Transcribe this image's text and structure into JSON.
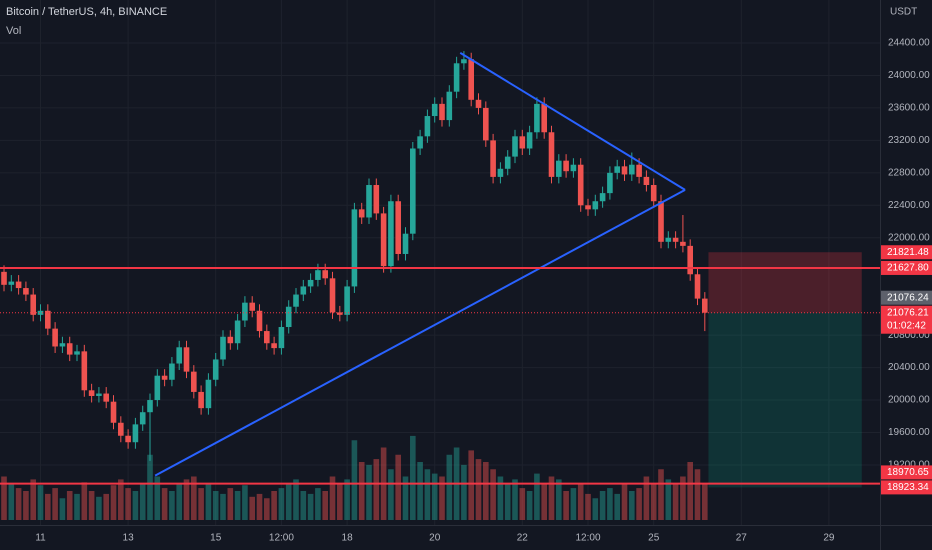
{
  "chart_data": {
    "type": "candlestick",
    "title": "Bitcoin / TetherUS, 4h, BINANCE",
    "volume_label": "Vol",
    "currency": "USDT",
    "up_color": "#26a69a",
    "down_color": "#ef5350",
    "grid": true,
    "xlim": [
      -0.55,
      120
    ],
    "ylim": [
      18460,
      24930
    ],
    "xticks": [
      {
        "value": 5,
        "label": "11"
      },
      {
        "value": 17,
        "label": "13"
      },
      {
        "value": 29,
        "label": "15"
      },
      {
        "value": 38,
        "label": "12:00"
      },
      {
        "value": 47,
        "label": "18"
      },
      {
        "value": 59,
        "label": "20"
      },
      {
        "value": 71,
        "label": "22"
      },
      {
        "value": 80,
        "label": "12:00"
      },
      {
        "value": 89,
        "label": "25"
      },
      {
        "value": 101,
        "label": "27"
      },
      {
        "value": 113,
        "label": "29"
      }
    ],
    "yticks": [
      {
        "value": 24400,
        "label": "24400.00"
      },
      {
        "value": 24000,
        "label": "24000.00"
      },
      {
        "value": 23600,
        "label": "23600.00"
      },
      {
        "value": 23200,
        "label": "23200.00"
      },
      {
        "value": 22800,
        "label": "22800.00"
      },
      {
        "value": 22400,
        "label": "22400.00"
      },
      {
        "value": 22000,
        "label": "22000.00"
      },
      {
        "value": 20800,
        "label": "20800.00"
      },
      {
        "value": 20400,
        "label": "20400.00"
      },
      {
        "value": 20000,
        "label": "20000.00"
      },
      {
        "value": 19600,
        "label": "19600.00"
      },
      {
        "value": 19200,
        "label": "19200.00"
      }
    ],
    "candles": [
      [
        21580,
        21660,
        21340,
        21420
      ],
      [
        21420,
        21540,
        21340,
        21460
      ],
      [
        21460,
        21540,
        21300,
        21380
      ],
      [
        21380,
        21460,
        21220,
        21300
      ],
      [
        21300,
        21380,
        20970,
        21050
      ],
      [
        21050,
        21180,
        20970,
        21100
      ],
      [
        21100,
        21180,
        20800,
        20880
      ],
      [
        20880,
        20960,
        20580,
        20660
      ],
      [
        20660,
        20780,
        20580,
        20700
      ],
      [
        20700,
        20780,
        20480,
        20560
      ],
      [
        20560,
        20680,
        20480,
        20600
      ],
      [
        20600,
        20680,
        20040,
        20120
      ],
      [
        20120,
        20200,
        19970,
        20050
      ],
      [
        20050,
        20160,
        19970,
        20080
      ],
      [
        20080,
        20160,
        19900,
        19980
      ],
      [
        19980,
        20060,
        19640,
        19720
      ],
      [
        19720,
        19800,
        19480,
        19560
      ],
      [
        19560,
        19640,
        19400,
        19480
      ],
      [
        19480,
        19780,
        19400,
        19700
      ],
      [
        19700,
        19930,
        19620,
        19850
      ],
      [
        19850,
        20080,
        19250,
        20000
      ],
      [
        20000,
        20380,
        19920,
        20300
      ],
      [
        20300,
        20380,
        20170,
        20250
      ],
      [
        20250,
        20530,
        20170,
        20450
      ],
      [
        20450,
        20730,
        20370,
        20650
      ],
      [
        20650,
        20730,
        20270,
        20350
      ],
      [
        20350,
        20430,
        20020,
        20100
      ],
      [
        20100,
        20180,
        19820,
        19900
      ],
      [
        19900,
        20330,
        19820,
        20250
      ],
      [
        20250,
        20580,
        20170,
        20500
      ],
      [
        20500,
        20860,
        20420,
        20780
      ],
      [
        20780,
        20860,
        20620,
        20700
      ],
      [
        20700,
        21060,
        20620,
        20980
      ],
      [
        20980,
        21280,
        20900,
        21200
      ],
      [
        21200,
        21280,
        21020,
        21100
      ],
      [
        21100,
        21180,
        20770,
        20850
      ],
      [
        20850,
        20930,
        20620,
        20700
      ],
      [
        20700,
        20780,
        20560,
        20640
      ],
      [
        20640,
        20980,
        20560,
        20900
      ],
      [
        20900,
        21230,
        20820,
        21150
      ],
      [
        21150,
        21380,
        21070,
        21300
      ],
      [
        21300,
        21480,
        21220,
        21400
      ],
      [
        21400,
        21560,
        21320,
        21480
      ],
      [
        21480,
        21680,
        21400,
        21600
      ],
      [
        21600,
        21680,
        21420,
        21500
      ],
      [
        21500,
        21580,
        21000,
        21080
      ],
      [
        21080,
        21160,
        20970,
        21050
      ],
      [
        21050,
        21480,
        20970,
        21400
      ],
      [
        21400,
        22430,
        21320,
        22350
      ],
      [
        22350,
        22430,
        22170,
        22250
      ],
      [
        22250,
        22730,
        22170,
        22650
      ],
      [
        22650,
        22730,
        22220,
        22300
      ],
      [
        22300,
        22380,
        21570,
        21650
      ],
      [
        21650,
        22530,
        21570,
        22450
      ],
      [
        22450,
        22530,
        21720,
        21800
      ],
      [
        21800,
        22130,
        21720,
        22050
      ],
      [
        22050,
        23180,
        21970,
        23100
      ],
      [
        23100,
        23330,
        23020,
        23250
      ],
      [
        23250,
        23580,
        23170,
        23500
      ],
      [
        23500,
        23730,
        23420,
        23650
      ],
      [
        23650,
        23730,
        23370,
        23450
      ],
      [
        23450,
        23880,
        23370,
        23800
      ],
      [
        23800,
        24230,
        23720,
        24150
      ],
      [
        24150,
        24300,
        24070,
        24200
      ],
      [
        24200,
        24280,
        23620,
        23700
      ],
      [
        23700,
        23780,
        23520,
        23600
      ],
      [
        23600,
        23680,
        23120,
        23200
      ],
      [
        23200,
        23280,
        22670,
        22750
      ],
      [
        22750,
        22930,
        22670,
        22850
      ],
      [
        22850,
        23080,
        22770,
        23000
      ],
      [
        23000,
        23330,
        22920,
        23250
      ],
      [
        23250,
        23330,
        23020,
        23100
      ],
      [
        23100,
        23380,
        23020,
        23300
      ],
      [
        23300,
        23730,
        23220,
        23650
      ],
      [
        23650,
        23730,
        23220,
        23300
      ],
      [
        23300,
        23380,
        22670,
        22750
      ],
      [
        22750,
        23030,
        22670,
        22950
      ],
      [
        22950,
        23030,
        22740,
        22820
      ],
      [
        22820,
        22980,
        22740,
        22900
      ],
      [
        22900,
        22980,
        22320,
        22400
      ],
      [
        22400,
        22480,
        22270,
        22350
      ],
      [
        22350,
        22530,
        22270,
        22450
      ],
      [
        22450,
        22630,
        22370,
        22550
      ],
      [
        22550,
        22880,
        22470,
        22800
      ],
      [
        22800,
        22960,
        22720,
        22880
      ],
      [
        22880,
        22960,
        22700,
        22780
      ],
      [
        22780,
        23050,
        22700,
        22900
      ],
      [
        22900,
        22980,
        22670,
        22750
      ],
      [
        22750,
        22830,
        22570,
        22650
      ],
      [
        22650,
        22730,
        22370,
        22450
      ],
      [
        22450,
        22530,
        21870,
        21950
      ],
      [
        21950,
        22080,
        21870,
        22000
      ],
      [
        22000,
        22080,
        21870,
        21950
      ],
      [
        21950,
        22280,
        21820,
        21900
      ],
      [
        21900,
        21980,
        21470,
        21550
      ],
      [
        21550,
        21630,
        21170,
        21250
      ],
      [
        21250,
        21330,
        20850,
        21076.21
      ]
    ],
    "volume": [
      30,
      25,
      22,
      20,
      28,
      24,
      18,
      22,
      15,
      20,
      18,
      26,
      20,
      16,
      18,
      24,
      28,
      22,
      20,
      25,
      45,
      30,
      22,
      20,
      25,
      28,
      30,
      22,
      25,
      20,
      18,
      22,
      20,
      24,
      16,
      18,
      15,
      20,
      22,
      25,
      28,
      20,
      18,
      22,
      20,
      30,
      25,
      28,
      55,
      40,
      38,
      42,
      50,
      35,
      45,
      30,
      58,
      40,
      35,
      32,
      30,
      45,
      50,
      38,
      48,
      42,
      40,
      35,
      30,
      25,
      28,
      22,
      20,
      32,
      25,
      30,
      28,
      20,
      22,
      25,
      18,
      15,
      20,
      22,
      18,
      25,
      20,
      22,
      30,
      25,
      35,
      28,
      25,
      30,
      40,
      35,
      25
    ],
    "trendlines": [
      {
        "from": [
          20.7,
          19068
        ],
        "to": [
          93.3,
          22590
        ],
        "color": "#2962ff"
      },
      {
        "from": [
          62.5,
          24278
        ],
        "to": [
          93.3,
          22590
        ],
        "color": "#2962ff"
      }
    ],
    "position": {
      "stop": 21821.48,
      "entry": 21076.21,
      "target": 18923.34,
      "from": 96.5,
      "to": 117.5,
      "stop_color": "rgba(242,54,69,0.25)",
      "target_color": "rgba(8,153,129,0.22)"
    },
    "price_tags": [
      {
        "value": 21821.48,
        "label": "21821.48",
        "color": "#f23645"
      },
      {
        "value": 21627.8,
        "label": "21627.80",
        "color": "#f23645",
        "line": true
      },
      {
        "value": 21076.24,
        "label": "21076.24",
        "color": "#5d606b"
      },
      {
        "value": 21076.21,
        "label": "21076.21",
        "countdown": "01:02:42",
        "color": "#f23645"
      },
      {
        "value": 18970.65,
        "label": "18970.65",
        "color": "#f23645",
        "line": true
      },
      {
        "value": 18923.34,
        "label": "18923.34",
        "color": "#f23645"
      }
    ]
  }
}
